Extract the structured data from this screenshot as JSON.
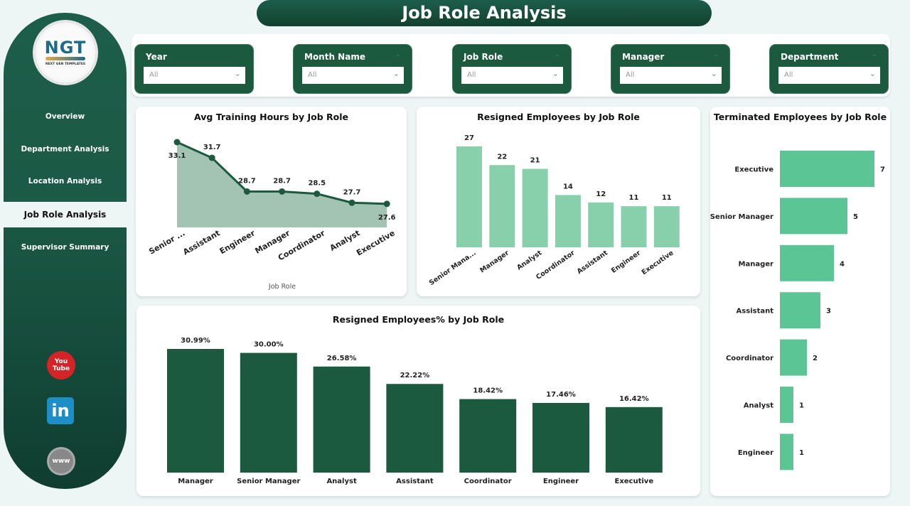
{
  "header": {
    "title": "Job Role Analysis"
  },
  "logo": {
    "main": "NGT",
    "sub": "NEXT GEN TEMPLATES"
  },
  "sidebar": {
    "items": [
      {
        "label": "Overview",
        "active": false
      },
      {
        "label": "Department Analysis",
        "active": false
      },
      {
        "label": "Location Analysis",
        "active": false
      },
      {
        "label": "Job Role Analysis",
        "active": true
      },
      {
        "label": "Supervisor Summary",
        "active": false
      }
    ],
    "social": [
      {
        "name": "youtube-icon",
        "label": "You\nTube"
      },
      {
        "name": "linkedin-icon",
        "label": "in"
      },
      {
        "name": "website-icon",
        "label": "www"
      }
    ]
  },
  "filters": [
    {
      "label": "Year",
      "value": "All"
    },
    {
      "label": "Month Name",
      "value": "All"
    },
    {
      "label": "Job Role",
      "value": "All"
    },
    {
      "label": "Manager",
      "value": "All"
    },
    {
      "label": "Department",
      "value": "All"
    }
  ],
  "colors": {
    "primary": "#1b5a3e",
    "area_fill": "#a3c4b3",
    "bar_light": "#88d0ab",
    "bar_medium": "#5bc596",
    "bar_dark": "#1b5a3e"
  },
  "chart_data": [
    {
      "type": "area",
      "title": "Avg Training Hours by Job Role",
      "xlabel": "Job Role",
      "ylabel": "",
      "categories": [
        "Senior ...",
        "Assistant",
        "Engineer",
        "Manager",
        "Coordinator",
        "Analyst",
        "Executive"
      ],
      "values": [
        33.1,
        31.7,
        28.7,
        28.7,
        28.5,
        27.7,
        27.6
      ]
    },
    {
      "type": "bar",
      "title": "Resigned Employees by Job Role",
      "xlabel": "",
      "ylabel": "",
      "categories": [
        "Senior Mana...",
        "Manager",
        "Analyst",
        "Coordinator",
        "Assistant",
        "Engineer",
        "Executive"
      ],
      "values": [
        27,
        22,
        21,
        14,
        12,
        11,
        11
      ]
    },
    {
      "type": "bar",
      "orientation": "horizontal",
      "title": "Terminated Employees by Job Role",
      "xlabel": "",
      "ylabel": "",
      "categories": [
        "Executive",
        "Senior Manager",
        "Manager",
        "Assistant",
        "Coordinator",
        "Analyst",
        "Engineer"
      ],
      "values": [
        7,
        5,
        4,
        3,
        2,
        1,
        1
      ]
    },
    {
      "type": "bar",
      "title": "Resigned Employees% by Job Role",
      "xlabel": "",
      "ylabel": "",
      "categories": [
        "Manager",
        "Senior Manager",
        "Analyst",
        "Assistant",
        "Coordinator",
        "Engineer",
        "Executive"
      ],
      "values": [
        30.99,
        30.0,
        26.58,
        22.22,
        18.42,
        17.46,
        16.42
      ],
      "labels": [
        "30.99%",
        "30.00%",
        "26.58%",
        "22.22%",
        "18.42%",
        "17.46%",
        "16.42%"
      ]
    }
  ]
}
